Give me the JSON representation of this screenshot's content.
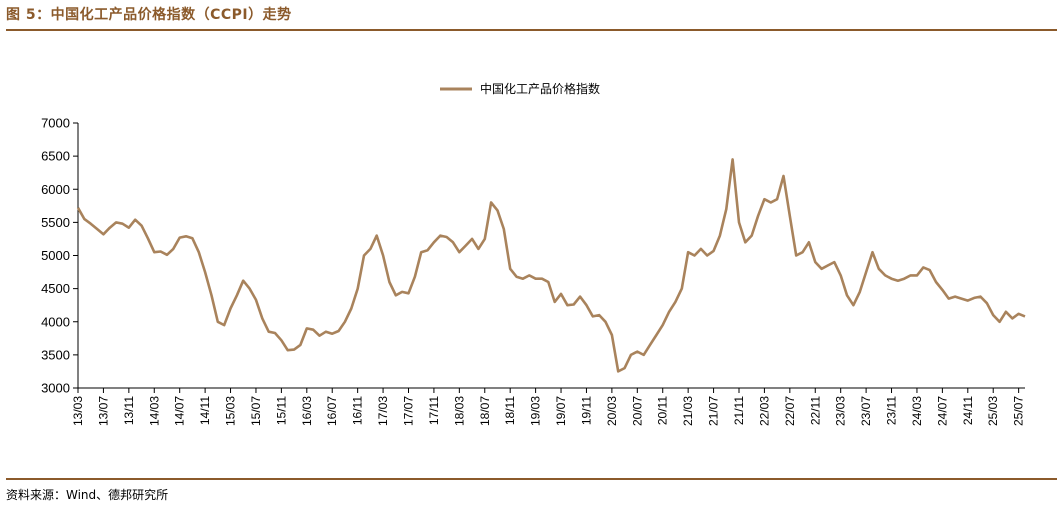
{
  "figure": {
    "title": "图 5：中国化工产品价格指数（CCPI）走势",
    "source": "资料来源：Wind、德邦研究所"
  },
  "colors": {
    "accent": "#8B5A2B",
    "series": "#A9835C"
  },
  "chart_data": {
    "type": "line",
    "title": "",
    "xlabel": "",
    "ylabel": "",
    "ylim": [
      3000,
      7000
    ],
    "yticks": [
      3000,
      3500,
      4000,
      4500,
      5000,
      5500,
      6000,
      6500,
      7000
    ],
    "xtick_labels": [
      "13/03",
      "13/07",
      "13/11",
      "14/03",
      "14/07",
      "14/11",
      "15/03",
      "15/07",
      "15/11",
      "16/03",
      "16/07",
      "16/11",
      "17/03",
      "17/07",
      "17/11",
      "18/03",
      "18/07",
      "18/11",
      "19/03",
      "19/07",
      "19/11",
      "20/03",
      "20/07",
      "20/11",
      "21/03",
      "21/07",
      "21/11",
      "22/03",
      "22/07",
      "22/11",
      "23/03",
      "23/07",
      "23/11",
      "24/03",
      "24/07",
      "24/11",
      "25/03",
      "25/07"
    ],
    "legend": "top-center",
    "grid": false,
    "series": [
      {
        "name": "中国化工产品价格指数",
        "points": [
          [
            "13/03",
            5720
          ],
          [
            "13/04",
            5550
          ],
          [
            "13/05",
            5480
          ],
          [
            "13/06",
            5400
          ],
          [
            "13/07",
            5320
          ],
          [
            "13/08",
            5420
          ],
          [
            "13/09",
            5500
          ],
          [
            "13/10",
            5480
          ],
          [
            "13/11",
            5420
          ],
          [
            "13/12",
            5540
          ],
          [
            "14/01",
            5450
          ],
          [
            "14/02",
            5260
          ],
          [
            "14/03",
            5050
          ],
          [
            "14/04",
            5060
          ],
          [
            "14/05",
            5010
          ],
          [
            "14/06",
            5100
          ],
          [
            "14/07",
            5270
          ],
          [
            "14/08",
            5290
          ],
          [
            "14/09",
            5260
          ],
          [
            "14/10",
            5050
          ],
          [
            "14/11",
            4750
          ],
          [
            "14/12",
            4400
          ],
          [
            "15/01",
            4000
          ],
          [
            "15/02",
            3950
          ],
          [
            "15/03",
            4200
          ],
          [
            "15/04",
            4400
          ],
          [
            "15/05",
            4620
          ],
          [
            "15/06",
            4500
          ],
          [
            "15/07",
            4330
          ],
          [
            "15/08",
            4050
          ],
          [
            "15/09",
            3850
          ],
          [
            "15/10",
            3830
          ],
          [
            "15/11",
            3720
          ],
          [
            "15/12",
            3570
          ],
          [
            "16/01",
            3580
          ],
          [
            "16/02",
            3650
          ],
          [
            "16/03",
            3900
          ],
          [
            "16/04",
            3880
          ],
          [
            "16/05",
            3790
          ],
          [
            "16/06",
            3850
          ],
          [
            "16/07",
            3820
          ],
          [
            "16/08",
            3860
          ],
          [
            "16/09",
            4000
          ],
          [
            "16/10",
            4200
          ],
          [
            "16/11",
            4500
          ],
          [
            "16/12",
            5000
          ],
          [
            "17/01",
            5100
          ],
          [
            "17/02",
            5300
          ],
          [
            "17/03",
            5000
          ],
          [
            "17/04",
            4600
          ],
          [
            "17/05",
            4400
          ],
          [
            "17/06",
            4450
          ],
          [
            "17/07",
            4430
          ],
          [
            "17/08",
            4680
          ],
          [
            "17/09",
            5050
          ],
          [
            "17/10",
            5080
          ],
          [
            "17/11",
            5200
          ],
          [
            "17/12",
            5300
          ],
          [
            "18/01",
            5280
          ],
          [
            "18/02",
            5200
          ],
          [
            "18/03",
            5050
          ],
          [
            "18/04",
            5150
          ],
          [
            "18/05",
            5250
          ],
          [
            "18/06",
            5100
          ],
          [
            "18/07",
            5250
          ],
          [
            "18/08",
            5800
          ],
          [
            "18/09",
            5680
          ],
          [
            "18/10",
            5400
          ],
          [
            "18/11",
            4800
          ],
          [
            "18/12",
            4680
          ],
          [
            "19/01",
            4650
          ],
          [
            "19/02",
            4700
          ],
          [
            "19/03",
            4650
          ],
          [
            "19/04",
            4650
          ],
          [
            "19/05",
            4600
          ],
          [
            "19/06",
            4300
          ],
          [
            "19/07",
            4420
          ],
          [
            "19/08",
            4250
          ],
          [
            "19/09",
            4260
          ],
          [
            "19/10",
            4380
          ],
          [
            "19/11",
            4250
          ],
          [
            "19/12",
            4080
          ],
          [
            "20/01",
            4100
          ],
          [
            "20/02",
            4000
          ],
          [
            "20/03",
            3800
          ],
          [
            "20/04",
            3250
          ],
          [
            "20/05",
            3300
          ],
          [
            "20/06",
            3500
          ],
          [
            "20/07",
            3550
          ],
          [
            "20/08",
            3500
          ],
          [
            "20/09",
            3650
          ],
          [
            "20/10",
            3800
          ],
          [
            "20/11",
            3950
          ],
          [
            "20/12",
            4150
          ],
          [
            "21/01",
            4300
          ],
          [
            "21/02",
            4500
          ],
          [
            "21/03",
            5050
          ],
          [
            "21/04",
            5000
          ],
          [
            "21/05",
            5100
          ],
          [
            "21/06",
            5000
          ],
          [
            "21/07",
            5070
          ],
          [
            "21/08",
            5300
          ],
          [
            "21/09",
            5700
          ],
          [
            "21/10",
            6450
          ],
          [
            "21/11",
            5500
          ],
          [
            "21/12",
            5200
          ],
          [
            "22/01",
            5300
          ],
          [
            "22/02",
            5600
          ],
          [
            "22/03",
            5850
          ],
          [
            "22/04",
            5800
          ],
          [
            "22/05",
            5850
          ],
          [
            "22/06",
            6200
          ],
          [
            "22/07",
            5600
          ],
          [
            "22/08",
            5000
          ],
          [
            "22/09",
            5050
          ],
          [
            "22/10",
            5200
          ],
          [
            "22/11",
            4900
          ],
          [
            "22/12",
            4800
          ],
          [
            "23/01",
            4850
          ],
          [
            "23/02",
            4900
          ],
          [
            "23/03",
            4700
          ],
          [
            "23/04",
            4400
          ],
          [
            "23/05",
            4250
          ],
          [
            "23/06",
            4450
          ],
          [
            "23/07",
            4750
          ],
          [
            "23/08",
            5050
          ],
          [
            "23/09",
            4800
          ],
          [
            "23/10",
            4700
          ],
          [
            "23/11",
            4650
          ],
          [
            "23/12",
            4620
          ],
          [
            "24/01",
            4650
          ],
          [
            "24/02",
            4700
          ],
          [
            "24/03",
            4700
          ],
          [
            "24/04",
            4820
          ],
          [
            "24/05",
            4780
          ],
          [
            "24/06",
            4600
          ],
          [
            "24/07",
            4480
          ],
          [
            "24/08",
            4350
          ],
          [
            "24/09",
            4380
          ],
          [
            "24/10",
            4350
          ],
          [
            "24/11",
            4320
          ],
          [
            "24/12",
            4360
          ],
          [
            "25/01",
            4380
          ],
          [
            "25/02",
            4280
          ],
          [
            "25/03",
            4100
          ],
          [
            "25/04",
            4000
          ],
          [
            "25/05",
            4150
          ],
          [
            "25/06",
            4050
          ],
          [
            "25/07",
            4120
          ],
          [
            "25/08",
            4080
          ]
        ]
      }
    ]
  }
}
